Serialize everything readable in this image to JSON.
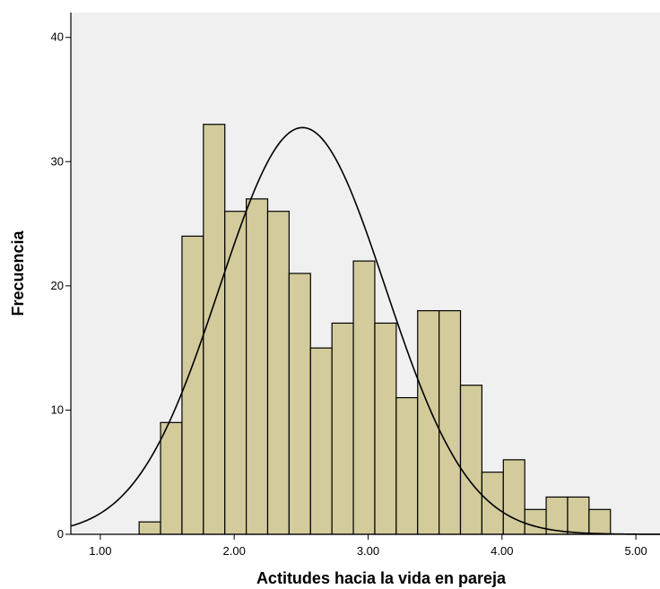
{
  "chart_data": {
    "type": "bar",
    "title": "",
    "xlabel": "Actitudes hacia la vida en pareja",
    "ylabel": "Frecuencia",
    "xlim": [
      0.78,
      5.18
    ],
    "ylim": [
      0,
      42
    ],
    "x_ticks": [
      {
        "value": 1.0,
        "label": "1.00"
      },
      {
        "value": 2.0,
        "label": "2.00"
      },
      {
        "value": 3.0,
        "label": "3.00"
      },
      {
        "value": 4.0,
        "label": "4.00"
      },
      {
        "value": 5.0,
        "label": "5.00"
      }
    ],
    "y_ticks": [
      {
        "value": 0,
        "label": "0"
      },
      {
        "value": 10,
        "label": "10"
      },
      {
        "value": 20,
        "label": "20"
      },
      {
        "value": 30,
        "label": "30"
      },
      {
        "value": 40,
        "label": "40"
      }
    ],
    "bin_start": 1.29,
    "bin_width": 0.16,
    "counts": [
      1,
      9,
      24,
      33,
      26,
      27,
      26,
      21,
      15,
      17,
      22,
      17,
      11,
      18,
      18,
      12,
      5,
      6,
      2,
      3,
      3,
      2
    ],
    "normal_curve": {
      "mean": 2.51,
      "sd": 0.62,
      "n": 318
    },
    "grid": false,
    "legend": "none",
    "colors": {
      "bar_fill": "#d3cb9b",
      "bar_stroke": "#000000",
      "plot_background": "#f0f0f0",
      "curve": "#000000"
    }
  }
}
